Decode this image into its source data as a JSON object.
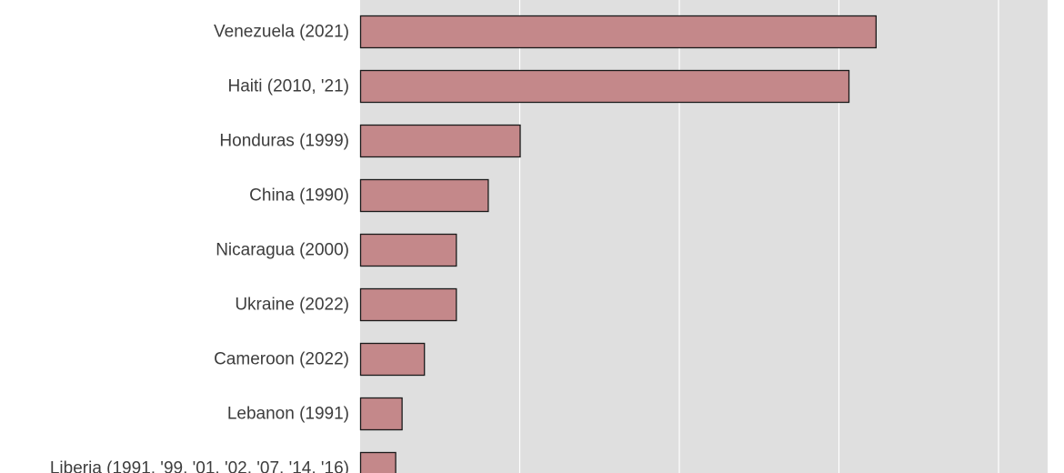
{
  "chart_data": {
    "type": "bar",
    "orientation": "horizontal",
    "categories": [
      "Venezuela (2021)",
      "Haiti (2010, '21)",
      "Honduras (1999)",
      "China (1990)",
      "Nicaragua (2000)",
      "Ukraine (2022)",
      "Cameroon (2022)",
      "Lebanon (1991)",
      "Liberia (1991, '99, '01, '02, '07, '14, '16)"
    ],
    "values": [
      323,
      306,
      100,
      80,
      60,
      60,
      40,
      26,
      22
    ],
    "xlim": [
      0,
      430
    ],
    "gridlines": [
      0,
      100,
      200,
      300,
      400
    ],
    "grid": true,
    "title": "",
    "xlabel": "",
    "ylabel": "",
    "colors": {
      "bar_fill": "#c4888a",
      "bar_stroke": "#1a1a1a",
      "plot_background": "#dfdfdf",
      "gridline": "#ffffff",
      "label_text": "#3d3d3d"
    }
  }
}
